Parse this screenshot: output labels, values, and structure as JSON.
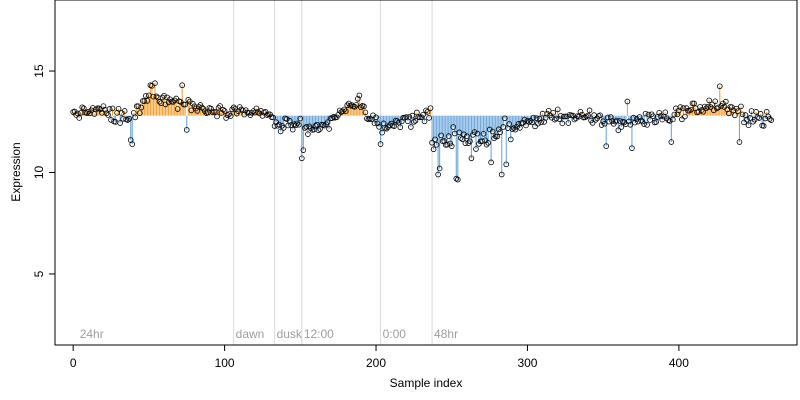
{
  "chart_data": {
    "type": "scatter",
    "title": "",
    "xlabel": "Sample index",
    "ylabel": "Expression",
    "xlim": [
      -12,
      478
    ],
    "ylim": [
      1.5,
      18.5
    ],
    "x_ticks": [
      0,
      100,
      200,
      300,
      400
    ],
    "y_ticks": [
      5,
      10,
      15
    ],
    "baseline": 12.8,
    "colors": {
      "above_baseline": "#f2a33a",
      "below_baseline": "#6fa8dc",
      "points_stroke": "#000000",
      "vlines": "#d9d9d9"
    },
    "annotations": [
      {
        "x": 3,
        "label": "24hr"
      },
      {
        "x": 106,
        "label": "dawn"
      },
      {
        "x": 133,
        "label": "dusk"
      },
      {
        "x": 151,
        "label": "12:00"
      },
      {
        "x": 203,
        "label": "0:00"
      },
      {
        "x": 237,
        "label": "48hr"
      }
    ],
    "point_count": 462,
    "segments": [
      {
        "x0": 0,
        "x1": 20,
        "y0": 12.9,
        "y1": 13.1,
        "noise": 0.35
      },
      {
        "x0": 20,
        "x1": 40,
        "y0": 12.9,
        "y1": 12.6,
        "noise": 0.6
      },
      {
        "x0": 40,
        "x1": 50,
        "y0": 12.8,
        "y1": 13.8,
        "noise": 0.5
      },
      {
        "x0": 50,
        "x1": 60,
        "y0": 14.0,
        "y1": 13.6,
        "noise": 0.5
      },
      {
        "x0": 60,
        "x1": 80,
        "y0": 13.6,
        "y1": 13.3,
        "noise": 0.5
      },
      {
        "x0": 80,
        "x1": 105,
        "y0": 13.2,
        "y1": 13.0,
        "noise": 0.35
      },
      {
        "x0": 105,
        "x1": 133,
        "y0": 13.1,
        "y1": 12.8,
        "noise": 0.35
      },
      {
        "x0": 133,
        "x1": 152,
        "y0": 12.3,
        "y1": 12.4,
        "noise": 0.45
      },
      {
        "x0": 152,
        "x1": 170,
        "y0": 11.9,
        "y1": 12.4,
        "noise": 0.45
      },
      {
        "x0": 170,
        "x1": 190,
        "y0": 12.6,
        "y1": 13.6,
        "noise": 0.35
      },
      {
        "x0": 190,
        "x1": 205,
        "y0": 13.3,
        "y1": 11.9,
        "noise": 0.4
      },
      {
        "x0": 205,
        "x1": 237,
        "y0": 12.3,
        "y1": 12.9,
        "noise": 0.45
      },
      {
        "x0": 237,
        "x1": 265,
        "y0": 11.6,
        "y1": 11.7,
        "noise": 0.75
      },
      {
        "x0": 265,
        "x1": 290,
        "y0": 11.6,
        "y1": 12.2,
        "noise": 0.65
      },
      {
        "x0": 290,
        "x1": 320,
        "y0": 12.2,
        "y1": 12.9,
        "noise": 0.45
      },
      {
        "x0": 320,
        "x1": 360,
        "y0": 12.8,
        "y1": 12.5,
        "noise": 0.5
      },
      {
        "x0": 360,
        "x1": 400,
        "y0": 12.4,
        "y1": 12.9,
        "noise": 0.5
      },
      {
        "x0": 400,
        "x1": 432,
        "y0": 13.0,
        "y1": 13.4,
        "noise": 0.45
      },
      {
        "x0": 432,
        "x1": 462,
        "y0": 13.0,
        "y1": 12.6,
        "noise": 0.55
      }
    ],
    "outliers": [
      {
        "x": 38,
        "y": 11.6
      },
      {
        "x": 39,
        "y": 11.4
      },
      {
        "x": 75,
        "y": 12.1
      },
      {
        "x": 151,
        "y": 10.7
      },
      {
        "x": 152,
        "y": 11.1
      },
      {
        "x": 203,
        "y": 11.4
      },
      {
        "x": 241,
        "y": 9.9
      },
      {
        "x": 242,
        "y": 10.2
      },
      {
        "x": 253,
        "y": 9.7
      },
      {
        "x": 254,
        "y": 9.65
      },
      {
        "x": 263,
        "y": 10.7
      },
      {
        "x": 276,
        "y": 10.5
      },
      {
        "x": 283,
        "y": 9.9
      },
      {
        "x": 286,
        "y": 10.4
      },
      {
        "x": 352,
        "y": 11.3
      },
      {
        "x": 369,
        "y": 11.2
      },
      {
        "x": 395,
        "y": 11.5
      },
      {
        "x": 440,
        "y": 11.5
      },
      {
        "x": 51,
        "y": 14.3
      },
      {
        "x": 54,
        "y": 14.4
      },
      {
        "x": 72,
        "y": 14.3
      },
      {
        "x": 189,
        "y": 13.8
      },
      {
        "x": 427,
        "y": 14.25
      },
      {
        "x": 366,
        "y": 13.5
      }
    ]
  }
}
